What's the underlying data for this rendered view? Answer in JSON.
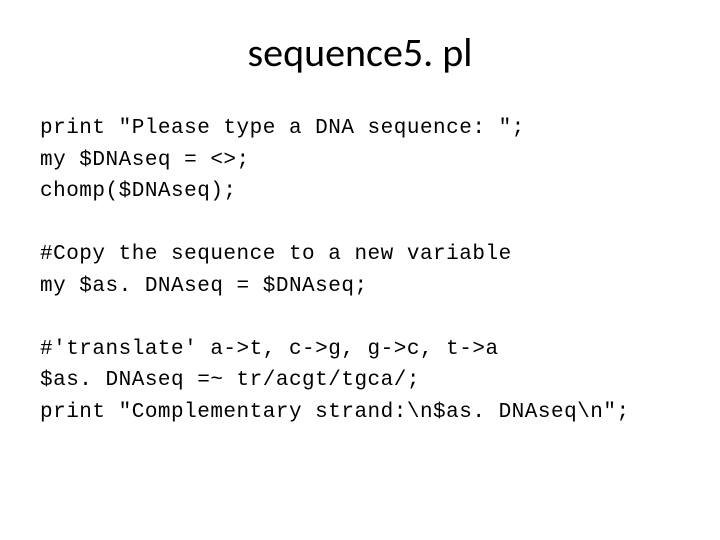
{
  "title": "sequence5. pl",
  "code": {
    "line1": "print \"Please type a DNA sequence: \";",
    "line2": "my $DNAseq = <>;",
    "line3": "chomp($DNAseq);",
    "line4": "#Copy the sequence to a new variable",
    "line5": "my $as. DNAseq = $DNAseq;",
    "line6": "#'translate' a->t, c->g, g->c, t->a",
    "line7": "$as. DNAseq =~ tr/acgt/tgca/;",
    "line8": "print \"Complementary strand:\\n$as. DNAseq\\n\";"
  },
  "style": {
    "background_color": "#ffffff",
    "title_fontsize": 40,
    "title_color": "#000000",
    "title_font": "Calibri",
    "code_fontsize": 21,
    "code_color": "#000000",
    "code_font": "Courier New",
    "line_height": 1.5
  }
}
